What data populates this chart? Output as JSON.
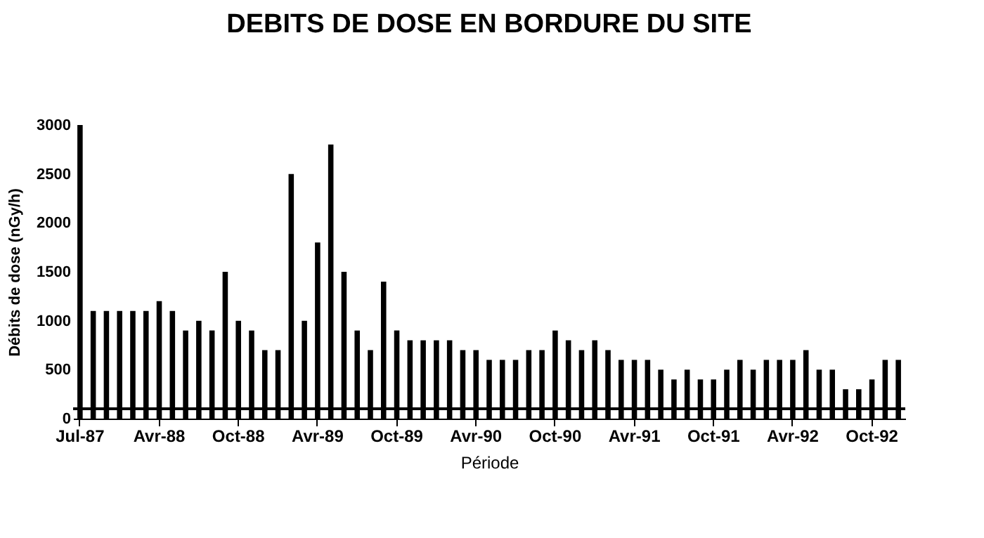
{
  "chart_data": {
    "type": "bar",
    "title": "DEBITS DE DOSE EN BORDURE DU SITE",
    "xlabel": "Période",
    "ylabel": "Débits de dose (nGy/h)",
    "categories": [
      "Jul-87",
      null,
      null,
      null,
      null,
      null,
      "Avr-88",
      null,
      null,
      null,
      null,
      null,
      "Oct-88",
      null,
      null,
      null,
      null,
      null,
      "Avr-89",
      null,
      null,
      null,
      null,
      null,
      "Oct-89",
      null,
      null,
      null,
      null,
      null,
      "Avr-90",
      null,
      null,
      null,
      null,
      null,
      "Oct-90",
      null,
      null,
      null,
      null,
      null,
      "Avr-91",
      null,
      null,
      null,
      null,
      null,
      "Oct-91",
      null,
      null,
      null,
      null,
      null,
      "Avr-92",
      null,
      null,
      null,
      null,
      null,
      "Oct-92",
      null,
      null
    ],
    "values": [
      3000,
      1100,
      1100,
      1100,
      1100,
      1100,
      1200,
      1100,
      900,
      1000,
      900,
      1500,
      1000,
      900,
      700,
      700,
      2500,
      1000,
      1800,
      2800,
      1500,
      900,
      700,
      1400,
      900,
      800,
      800,
      800,
      800,
      700,
      700,
      600,
      600,
      600,
      700,
      700,
      900,
      800,
      700,
      800,
      700,
      600,
      600,
      600,
      500,
      400,
      500,
      400,
      400,
      500,
      600,
      500,
      600,
      600,
      600,
      700,
      500,
      500,
      300,
      300,
      400,
      600,
      600
    ],
    "color": "#000000",
    "ylim": [
      0,
      3000
    ],
    "yticks": [
      0,
      500,
      1000,
      1500,
      2000,
      2500,
      3000
    ],
    "grid": false,
    "ref_lines": [
      {
        "axis": "y",
        "value": 100,
        "color": "#000000"
      }
    ]
  }
}
